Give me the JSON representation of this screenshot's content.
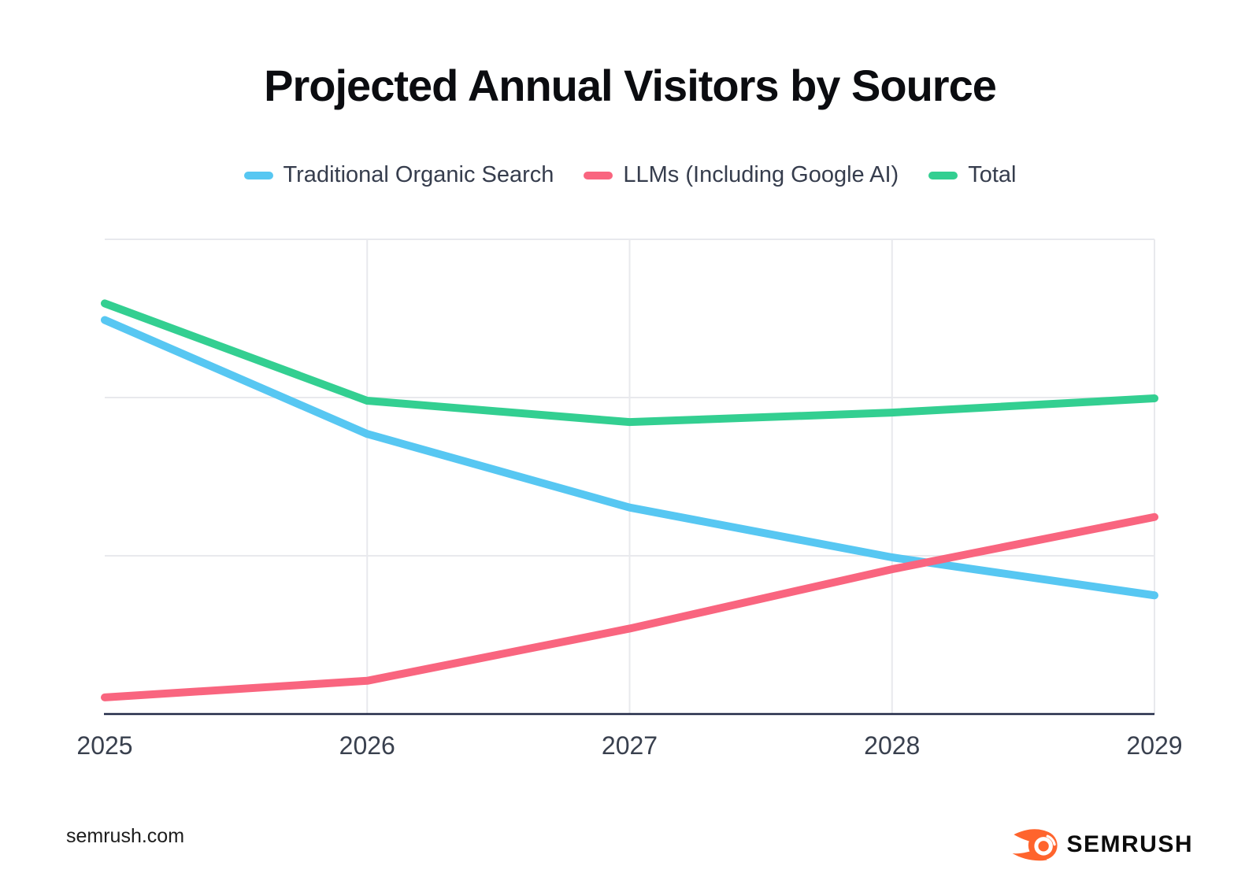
{
  "page": {
    "title": "Projected Annual Visitors by Source"
  },
  "footer": {
    "site": "semrush.com",
    "brand": "SEMRUSH",
    "brand_icon": "semrush-comet-icon",
    "brand_color": "#FF642D"
  },
  "chart_data": {
    "type": "line",
    "title": "Projected Annual Visitors by Source",
    "x": [
      "2025",
      "2026",
      "2027",
      "2028",
      "2029"
    ],
    "xlabel": "",
    "ylabel": "",
    "y_axis_labels_visible": false,
    "y_unit_note": "no y-axis tick labels shown; values are relative units where the top gridline = 100 and the x-axis = 0",
    "ylim": [
      0,
      100
    ],
    "grid": {
      "horizontal": true,
      "vertical": true,
      "color": "#e8e9ed"
    },
    "axis_color": "#212946",
    "legend_position": "top",
    "line_width": 10,
    "series": [
      {
        "name": "Traditional Organic Search",
        "color": "#57C7F2",
        "values": [
          83,
          59,
          43.5,
          33,
          25
        ]
      },
      {
        "name": "LLMs (Including Google AI)",
        "color": "#F9657F",
        "values": [
          3.5,
          7,
          18,
          30.5,
          41.5
        ]
      },
      {
        "name": "Total",
        "color": "#33CF91",
        "values": [
          86.5,
          66,
          61.5,
          63.5,
          66.5
        ]
      }
    ],
    "tick_label_color": "#39404e"
  }
}
